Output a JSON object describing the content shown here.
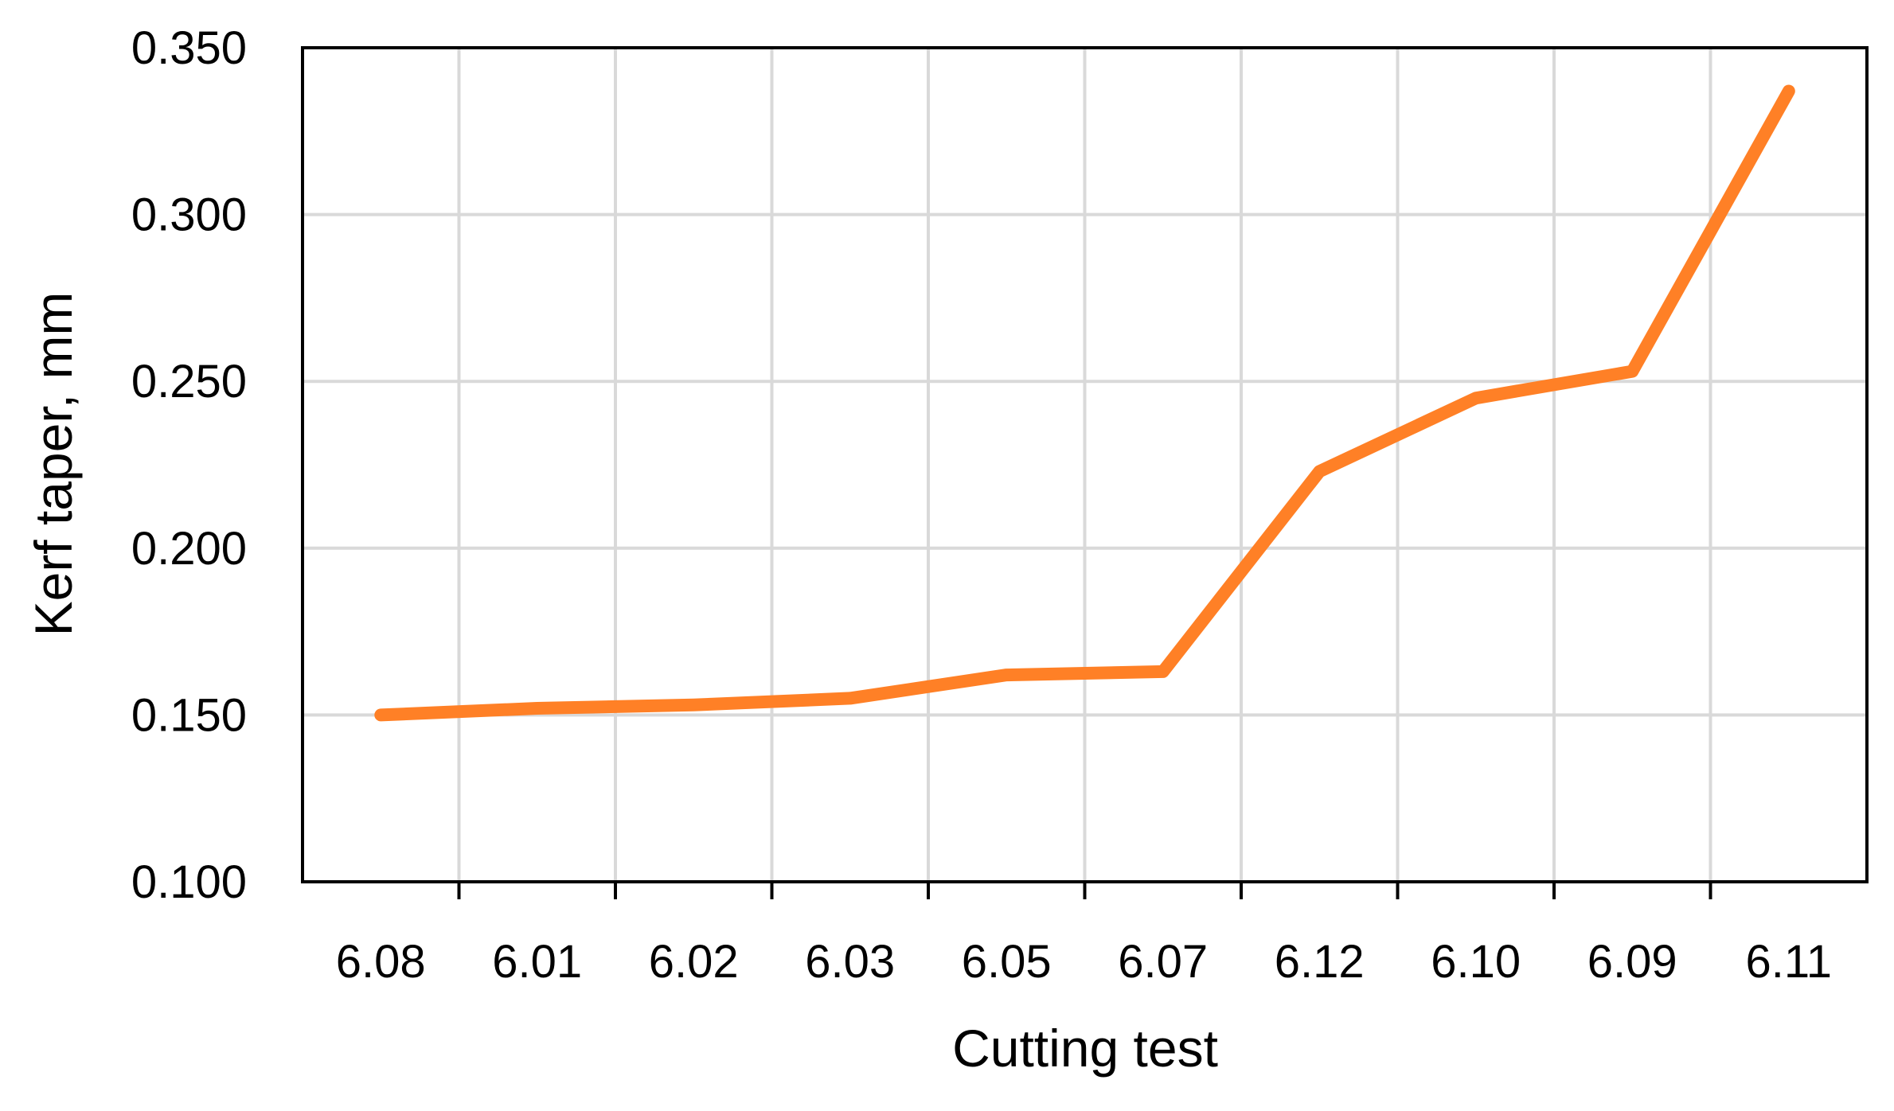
{
  "chart_data": {
    "type": "line",
    "title": "",
    "xlabel": "Cutting test",
    "ylabel": "Kerf taper, mm",
    "categories": [
      "6.08",
      "6.01",
      "6.02",
      "6.03",
      "6.05",
      "6.07",
      "6.12",
      "6.10",
      "6.09",
      "6.11"
    ],
    "series": [
      {
        "values": [
          0.15,
          0.152,
          0.153,
          0.155,
          0.162,
          0.163,
          0.223,
          0.245,
          0.253,
          0.337
        ]
      }
    ],
    "ylim": [
      0.1,
      0.35
    ],
    "yticks": [
      "0.100",
      "0.150",
      "0.200",
      "0.250",
      "0.300",
      "0.350"
    ],
    "grid": true,
    "legend": "none",
    "colors": {
      "line": "#FF8026",
      "grid": "#D9D9D9",
      "axis": "#000000"
    }
  }
}
